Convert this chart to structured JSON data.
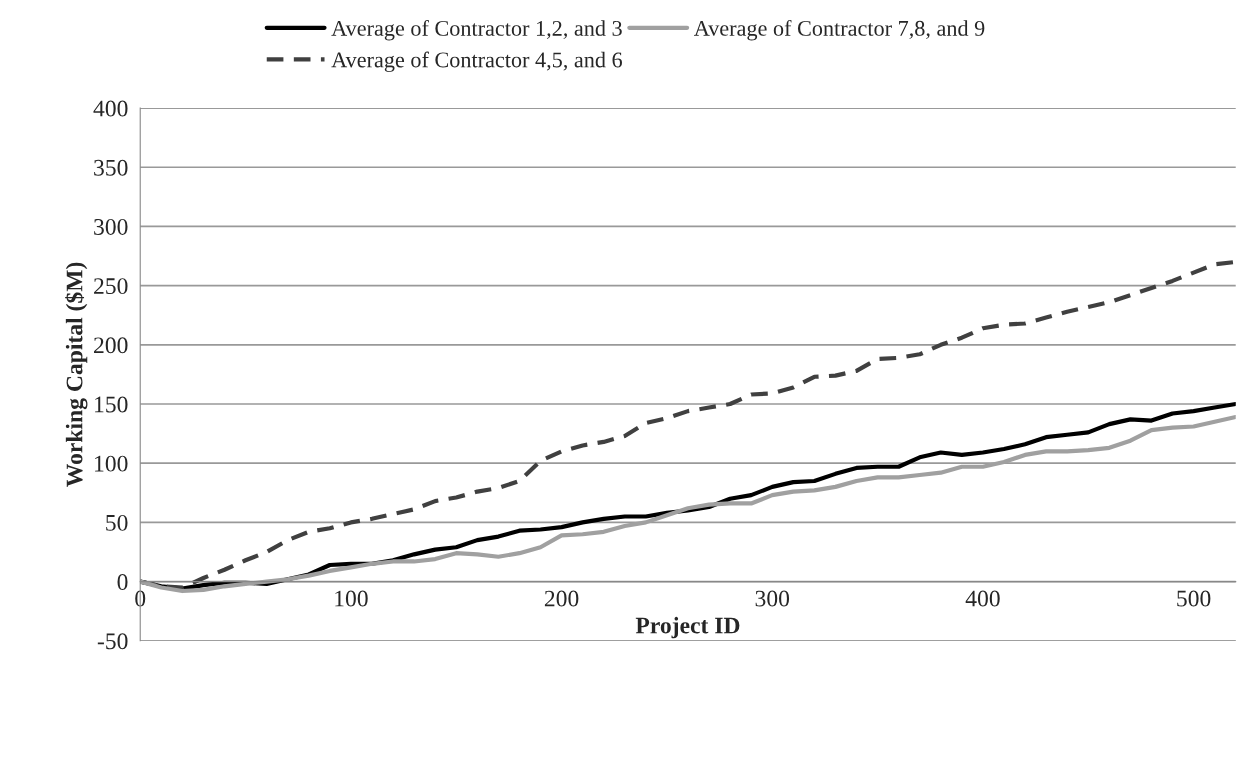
{
  "chart_data": {
    "type": "line",
    "xlabel": "Project ID",
    "ylabel": "Working Capital ($M)",
    "x": [
      0,
      10,
      20,
      30,
      40,
      50,
      60,
      70,
      80,
      90,
      100,
      110,
      120,
      130,
      140,
      150,
      160,
      170,
      180,
      190,
      200,
      210,
      220,
      230,
      240,
      250,
      260,
      270,
      280,
      290,
      300,
      310,
      320,
      330,
      340,
      350,
      360,
      370,
      380,
      390,
      400,
      410,
      420,
      430,
      440,
      450,
      460,
      470,
      480,
      490,
      500,
      510,
      520
    ],
    "series": [
      {
        "name": "Average of Contractor 1,2, and 3",
        "color": "#000000",
        "line_style": "solid",
        "values": [
          0,
          -4,
          -6,
          -3,
          -1,
          -1,
          -2,
          2,
          6,
          14,
          15,
          15,
          18,
          23,
          27,
          29,
          35,
          38,
          43,
          44,
          46,
          50,
          53,
          55,
          55,
          58,
          60,
          63,
          70,
          73,
          80,
          84,
          85,
          91,
          96,
          97,
          97,
          105,
          109,
          107,
          109,
          112,
          116,
          122,
          124,
          126,
          133,
          137,
          136,
          142,
          144,
          147,
          150
        ]
      },
      {
        "name": "Average of Contractor 4,5, and 6",
        "color": "#404040",
        "line_style": "dashed",
        "values": [
          0,
          -4,
          -5,
          3,
          10,
          18,
          25,
          35,
          42,
          45,
          50,
          53,
          57,
          61,
          68,
          71,
          76,
          79,
          85,
          102,
          110,
          115,
          118,
          123,
          134,
          138,
          144,
          147,
          150,
          158,
          159,
          164,
          173,
          174,
          178,
          188,
          189,
          192,
          200,
          206,
          214,
          217,
          218,
          223,
          228,
          232,
          236,
          242,
          248,
          254,
          261,
          268,
          270
        ]
      },
      {
        "name": "Average of Contractor 7,8, and 9",
        "color": "#a0a0a0",
        "line_style": "solid",
        "values": [
          0,
          -5,
          -8,
          -7,
          -4,
          -2,
          0,
          2,
          5,
          9,
          12,
          15,
          17,
          17,
          19,
          24,
          23,
          21,
          24,
          29,
          39,
          40,
          42,
          47,
          50,
          56,
          62,
          65,
          66,
          66,
          73,
          76,
          77,
          80,
          85,
          88,
          88,
          90,
          92,
          97,
          97,
          101,
          107,
          110,
          110,
          111,
          113,
          119,
          128,
          130,
          131,
          135,
          139
        ]
      }
    ],
    "xlim": [
      0,
      520
    ],
    "xticks": [
      0,
      100,
      200,
      300,
      400,
      500
    ],
    "ylim": [
      -50,
      400
    ],
    "yticks": [
      -50,
      0,
      50,
      100,
      150,
      200,
      250,
      300,
      350,
      400
    ],
    "grid": "y",
    "legend": "top",
    "marker": "none"
  }
}
